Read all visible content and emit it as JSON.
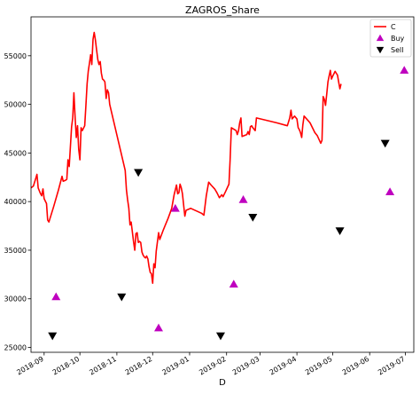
{
  "chart_data": {
    "type": "line",
    "title": "ZAGROS_Share",
    "xlabel": "D",
    "ylabel": "",
    "xlim": [
      "2018-08-21",
      "2019-07-08"
    ],
    "ylim": [
      24500,
      59000
    ],
    "yticks": [
      25000,
      30000,
      35000,
      40000,
      45000,
      50000,
      55000
    ],
    "xticks": [
      "2018-09",
      "2018-10",
      "2018-11",
      "2018-12",
      "2019-01",
      "2019-02",
      "2019-03",
      "2019-04",
      "2019-05",
      "2019-06",
      "2019-07"
    ],
    "grid": false,
    "legend_position": "top-right",
    "series": [
      {
        "name": "C",
        "kind": "line",
        "color": "#ff0000",
        "points": [
          [
            "2018-08-21",
            41400
          ],
          [
            "2018-08-23",
            41600
          ],
          [
            "2018-08-25",
            42400
          ],
          [
            "2018-08-26",
            42800
          ],
          [
            "2018-08-27",
            41400
          ],
          [
            "2018-08-29",
            40800
          ],
          [
            "2018-08-30",
            40600
          ],
          [
            "2018-08-31",
            41300
          ],
          [
            "2018-09-01",
            40300
          ],
          [
            "2018-09-03",
            39800
          ],
          [
            "2018-09-04",
            38100
          ],
          [
            "2018-09-05",
            37900
          ],
          [
            "2018-09-09",
            39500
          ],
          [
            "2018-09-13",
            41200
          ],
          [
            "2018-09-16",
            42600
          ],
          [
            "2018-09-17",
            42100
          ],
          [
            "2018-09-19",
            42200
          ],
          [
            "2018-09-20",
            42300
          ],
          [
            "2018-09-21",
            44300
          ],
          [
            "2018-09-22",
            43600
          ],
          [
            "2018-09-24",
            47700
          ],
          [
            "2018-09-25",
            48600
          ],
          [
            "2018-09-26",
            51200
          ],
          [
            "2018-09-27",
            48600
          ],
          [
            "2018-09-28",
            46600
          ],
          [
            "2018-09-29",
            47800
          ],
          [
            "2018-09-30",
            45400
          ],
          [
            "2018-10-01",
            44300
          ],
          [
            "2018-10-02",
            47600
          ],
          [
            "2018-10-03",
            47300
          ],
          [
            "2018-10-05",
            47800
          ],
          [
            "2018-10-06",
            49800
          ],
          [
            "2018-10-07",
            52100
          ],
          [
            "2018-10-08",
            53400
          ],
          [
            "2018-10-09",
            54200
          ],
          [
            "2018-10-10",
            55100
          ],
          [
            "2018-10-11",
            54100
          ],
          [
            "2018-10-12",
            56700
          ],
          [
            "2018-10-13",
            57400
          ],
          [
            "2018-10-14",
            56600
          ],
          [
            "2018-10-15",
            55600
          ],
          [
            "2018-10-16",
            54600
          ],
          [
            "2018-10-17",
            54100
          ],
          [
            "2018-10-18",
            54400
          ],
          [
            "2018-10-19",
            53200
          ],
          [
            "2018-10-20",
            52600
          ],
          [
            "2018-10-21",
            52500
          ],
          [
            "2018-10-22",
            52300
          ],
          [
            "2018-10-23",
            50600
          ],
          [
            "2018-10-24",
            51500
          ],
          [
            "2018-10-25",
            51200
          ],
          [
            "2018-10-26",
            50000
          ],
          [
            "2018-11-04",
            45300
          ],
          [
            "2018-11-08",
            43200
          ],
          [
            "2018-11-09",
            41200
          ],
          [
            "2018-11-10",
            40200
          ],
          [
            "2018-11-11",
            39300
          ],
          [
            "2018-11-12",
            37600
          ],
          [
            "2018-11-13",
            37900
          ],
          [
            "2018-11-15",
            35900
          ],
          [
            "2018-11-16",
            35000
          ],
          [
            "2018-11-17",
            36700
          ],
          [
            "2018-11-18",
            36800
          ],
          [
            "2018-11-19",
            35800
          ],
          [
            "2018-11-20",
            35900
          ],
          [
            "2018-11-21",
            35800
          ],
          [
            "2018-11-22",
            34800
          ],
          [
            "2018-11-23",
            34500
          ],
          [
            "2018-11-24",
            34300
          ],
          [
            "2018-11-25",
            34200
          ],
          [
            "2018-11-26",
            34400
          ],
          [
            "2018-11-27",
            34100
          ],
          [
            "2018-11-28",
            33300
          ],
          [
            "2018-11-29",
            32700
          ],
          [
            "2018-11-30",
            32600
          ],
          [
            "2018-12-01",
            31600
          ],
          [
            "2018-12-02",
            33600
          ],
          [
            "2018-12-03",
            33200
          ],
          [
            "2018-12-04",
            34900
          ],
          [
            "2018-12-06",
            36800
          ],
          [
            "2018-12-07",
            36100
          ],
          [
            "2018-12-10",
            37100
          ],
          [
            "2018-12-14",
            38300
          ],
          [
            "2018-12-17",
            39300
          ],
          [
            "2018-12-19",
            40700
          ],
          [
            "2018-12-21",
            41700
          ],
          [
            "2018-12-22",
            40800
          ],
          [
            "2018-12-23",
            40900
          ],
          [
            "2018-12-24",
            41800
          ],
          [
            "2018-12-25",
            41400
          ],
          [
            "2018-12-26",
            40800
          ],
          [
            "2018-12-28",
            38500
          ],
          [
            "2018-12-29",
            39100
          ],
          [
            "2019-01-02",
            39300
          ],
          [
            "2019-01-11",
            38800
          ],
          [
            "2019-01-13",
            38600
          ],
          [
            "2019-01-15",
            40600
          ],
          [
            "2019-01-17",
            42000
          ],
          [
            "2019-01-19",
            41700
          ],
          [
            "2019-01-22",
            41300
          ],
          [
            "2019-01-24",
            40900
          ],
          [
            "2019-01-26",
            40400
          ],
          [
            "2019-01-28",
            40700
          ],
          [
            "2019-01-29",
            40500
          ],
          [
            "2019-01-31",
            41000
          ],
          [
            "2019-02-03",
            41800
          ],
          [
            "2019-02-04",
            44300
          ],
          [
            "2019-02-05",
            47600
          ],
          [
            "2019-02-09",
            47300
          ],
          [
            "2019-02-10",
            46900
          ],
          [
            "2019-02-11",
            47300
          ],
          [
            "2019-02-12",
            48100
          ],
          [
            "2019-02-13",
            48600
          ],
          [
            "2019-02-14",
            46700
          ],
          [
            "2019-02-18",
            46900
          ],
          [
            "2019-02-19",
            47200
          ],
          [
            "2019-02-20",
            46900
          ],
          [
            "2019-02-21",
            47700
          ],
          [
            "2019-02-22",
            47800
          ],
          [
            "2019-02-23",
            47600
          ],
          [
            "2019-02-25",
            47300
          ],
          [
            "2019-02-26",
            48600
          ],
          [
            "2019-03-15",
            48100
          ],
          [
            "2019-03-24",
            47800
          ],
          [
            "2019-03-26",
            48600
          ],
          [
            "2019-03-27",
            49400
          ],
          [
            "2019-03-28",
            48500
          ],
          [
            "2019-03-30",
            48800
          ],
          [
            "2019-04-01",
            48500
          ],
          [
            "2019-04-02",
            47600
          ],
          [
            "2019-04-03",
            47400
          ],
          [
            "2019-04-04",
            47100
          ],
          [
            "2019-04-05",
            46600
          ],
          [
            "2019-04-06",
            47900
          ],
          [
            "2019-04-07",
            48800
          ],
          [
            "2019-04-12",
            48100
          ],
          [
            "2019-04-14",
            47600
          ],
          [
            "2019-04-16",
            47100
          ],
          [
            "2019-04-18",
            46800
          ],
          [
            "2019-04-21",
            46000
          ],
          [
            "2019-04-22",
            46300
          ],
          [
            "2019-04-23",
            50800
          ],
          [
            "2019-04-24",
            50500
          ],
          [
            "2019-04-25",
            49900
          ],
          [
            "2019-04-26",
            51100
          ],
          [
            "2019-04-27",
            52300
          ],
          [
            "2019-04-28",
            52900
          ],
          [
            "2019-04-29",
            53500
          ],
          [
            "2019-04-30",
            52600
          ],
          [
            "2019-05-01",
            52900
          ],
          [
            "2019-05-03",
            53400
          ],
          [
            "2019-05-04",
            53200
          ],
          [
            "2019-05-05",
            53000
          ],
          [
            "2019-05-06",
            52300
          ],
          [
            "2019-05-07",
            51600
          ],
          [
            "2019-05-08",
            52100
          ]
        ]
      },
      {
        "name": "Buy",
        "kind": "marker",
        "marker": "triangle-up",
        "color": "#bf00bf",
        "points": [
          [
            "2018-09-11",
            30200
          ],
          [
            "2018-12-06",
            27000
          ],
          [
            "2018-12-20",
            39300
          ],
          [
            "2019-02-07",
            31500
          ],
          [
            "2019-02-15",
            40200
          ],
          [
            "2019-06-18",
            41000
          ],
          [
            "2019-06-30",
            53500
          ]
        ]
      },
      {
        "name": "Sell",
        "kind": "marker",
        "marker": "triangle-down",
        "color": "#000000",
        "points": [
          [
            "2018-09-08",
            26200
          ],
          [
            "2018-11-05",
            30200
          ],
          [
            "2018-11-19",
            43000
          ],
          [
            "2019-01-27",
            26200
          ],
          [
            "2019-02-23",
            38400
          ],
          [
            "2019-05-07",
            37000
          ],
          [
            "2019-06-14",
            46000
          ]
        ]
      }
    ]
  }
}
